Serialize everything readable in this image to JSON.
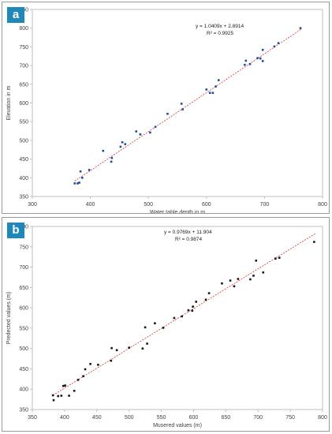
{
  "chart_data": [
    {
      "panel_label": "a",
      "type": "scatter",
      "xlabel": "Water table depth in m",
      "ylabel": "Elevation in m",
      "xlim": [
        300,
        800
      ],
      "ylim": [
        350,
        850
      ],
      "xticks": [
        "300",
        "400",
        "500",
        "600",
        "700",
        "800"
      ],
      "yticks": [
        "350",
        "400",
        "450",
        "500",
        "550",
        "600",
        "650",
        "700",
        "750",
        "800",
        "850"
      ],
      "grid": false,
      "marker_color": "#1f4e9e",
      "trendline_color": "#e03030",
      "trendline": {
        "equation": "y = 1.0409x + 2.8914",
        "r2": "R² = 0.9925",
        "slope": 1.0409,
        "intercept": 2.8914,
        "x_range": [
          373,
          763
        ]
      },
      "points": [
        [
          373,
          385
        ],
        [
          378,
          385
        ],
        [
          381,
          387
        ],
        [
          383,
          417
        ],
        [
          386,
          400
        ],
        [
          398,
          421
        ],
        [
          422,
          472
        ],
        [
          436,
          443
        ],
        [
          437,
          453
        ],
        [
          452,
          483
        ],
        [
          455,
          495
        ],
        [
          460,
          490
        ],
        [
          479,
          524
        ],
        [
          486,
          516
        ],
        [
          503,
          521
        ],
        [
          512,
          536
        ],
        [
          533,
          571
        ],
        [
          557,
          598
        ],
        [
          559,
          583
        ],
        [
          600,
          636
        ],
        [
          606,
          627
        ],
        [
          611,
          627
        ],
        [
          616,
          644
        ],
        [
          621,
          661
        ],
        [
          666,
          702
        ],
        [
          668,
          713
        ],
        [
          675,
          704
        ],
        [
          688,
          720
        ],
        [
          693,
          719
        ],
        [
          697,
          712
        ],
        [
          697,
          742
        ],
        [
          717,
          751
        ],
        [
          724,
          760
        ],
        [
          762,
          800
        ]
      ]
    },
    {
      "panel_label": "b",
      "type": "scatter",
      "xlabel": "Musered values (m)",
      "ylabel": "Predected values (m)",
      "xlim": [
        350,
        800
      ],
      "ylim": [
        350,
        800
      ],
      "xticks": [
        "350",
        "400",
        "450",
        "500",
        "550",
        "600",
        "650",
        "700",
        "750",
        "800"
      ],
      "yticks": [
        "350",
        "400",
        "450",
        "500",
        "550",
        "600",
        "650",
        "700",
        "750",
        "800"
      ],
      "grid": false,
      "marker_color": "#1a1a1a",
      "trendline_color": "#e03030",
      "trendline": {
        "equation": "y = 0.9769x + 11.904",
        "r2": "R² = 0.9874",
        "slope": 0.9769,
        "intercept": 11.904,
        "x_range": [
          382,
          790
        ]
      },
      "points": [
        [
          382,
          385
        ],
        [
          383,
          373
        ],
        [
          390,
          383
        ],
        [
          395,
          384
        ],
        [
          398,
          408
        ],
        [
          401,
          409
        ],
        [
          407,
          384
        ],
        [
          415,
          396
        ],
        [
          421,
          423
        ],
        [
          429,
          432
        ],
        [
          432,
          449
        ],
        [
          440,
          462
        ],
        [
          452,
          460
        ],
        [
          472,
          470
        ],
        [
          473,
          501
        ],
        [
          481,
          496
        ],
        [
          500,
          502
        ],
        [
          521,
          500
        ],
        [
          525,
          552
        ],
        [
          528,
          512
        ],
        [
          540,
          562
        ],
        [
          553,
          551
        ],
        [
          570,
          575
        ],
        [
          582,
          579
        ],
        [
          592,
          594
        ],
        [
          598,
          593
        ],
        [
          599,
          603
        ],
        [
          604,
          615
        ],
        [
          619,
          620
        ],
        [
          624,
          636
        ],
        [
          644,
          660
        ],
        [
          657,
          667
        ],
        [
          663,
          653
        ],
        [
          669,
          671
        ],
        [
          688,
          670
        ],
        [
          693,
          679
        ],
        [
          697,
          716
        ],
        [
          708,
          687
        ],
        [
          727,
          721
        ],
        [
          733,
          723
        ],
        [
          787,
          762
        ]
      ]
    }
  ]
}
